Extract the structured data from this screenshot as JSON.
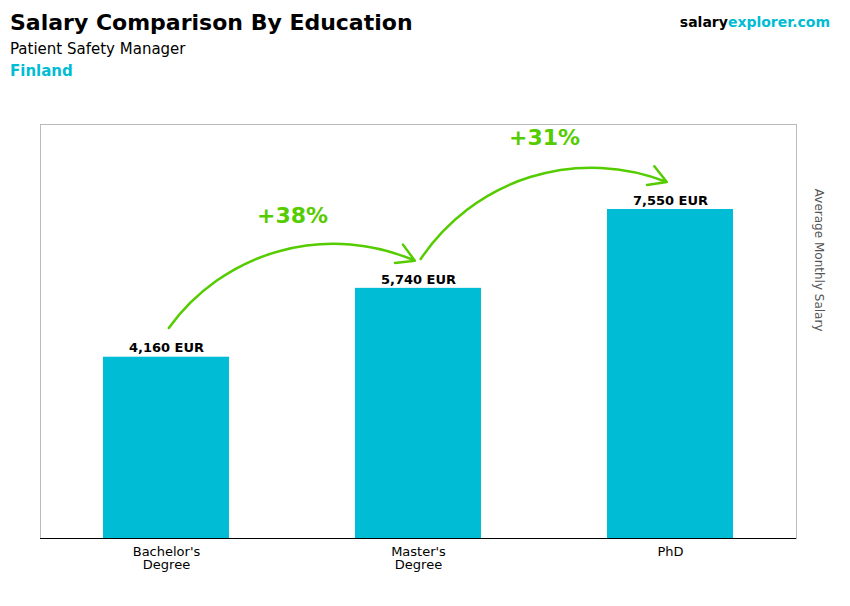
{
  "chart_data": {
    "type": "bar",
    "title": "Salary Comparison By Education",
    "subtitle": [
      "Patient Safety Manager",
      "Finland"
    ],
    "categories": [
      "Bachelor's\nDegree",
      "Master's\nDegree",
      "PhD"
    ],
    "values": [
      4160,
      5740,
      7550
    ],
    "value_labels": [
      "4,160 EUR",
      "5,740 EUR",
      "7,550 EUR"
    ],
    "data_labels": true,
    "color": "#00bcd4",
    "ylabel": "Average Monthly Salary",
    "ylim": [
      0,
      9500
    ],
    "tick_labels": "x",
    "grid": false,
    "annotations": [
      {
        "text": "salary"
      },
      {
        "text": "explorer.com"
      },
      {
        "text": "+38%",
        "from": "Bachelor's\nDegree",
        "to": "Master's\nDegree",
        "color": "#55cc00"
      },
      {
        "text": "+31%",
        "from": "Master's\nDegree",
        "to": "PhD",
        "color": "#55cc00"
      }
    ]
  }
}
